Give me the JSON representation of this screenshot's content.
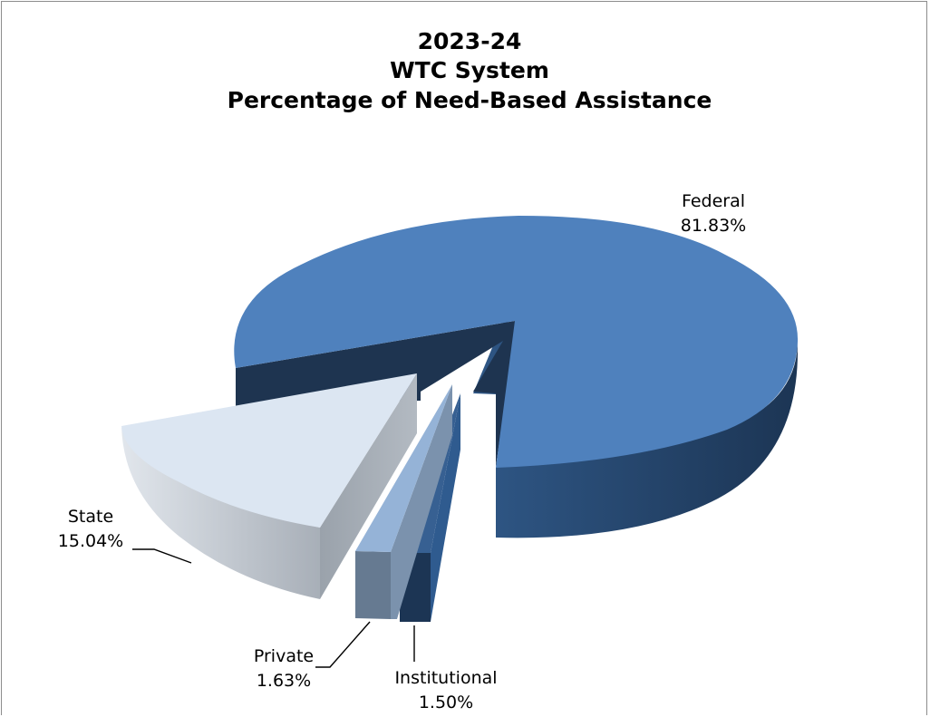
{
  "chart_data": {
    "type": "pie",
    "title_lines": [
      "2023-24",
      "WTC System",
      "Percentage of Need-Based Assistance"
    ],
    "slices": [
      {
        "name": "Federal",
        "value": 81.83,
        "label": "81.83%",
        "color": "#4f81bd",
        "exploded": false
      },
      {
        "name": "Institutional",
        "value": 1.5,
        "label": "1.50%",
        "color": "#376092",
        "exploded": true
      },
      {
        "name": "Private",
        "value": 1.63,
        "label": "1.63%",
        "color": "#95b3d7",
        "exploded": true
      },
      {
        "name": "State",
        "value": 15.04,
        "label": "15.04%",
        "color": "#dce6f2",
        "exploded": true
      }
    ],
    "legend": "none",
    "style": "3d-exploded-pie"
  }
}
